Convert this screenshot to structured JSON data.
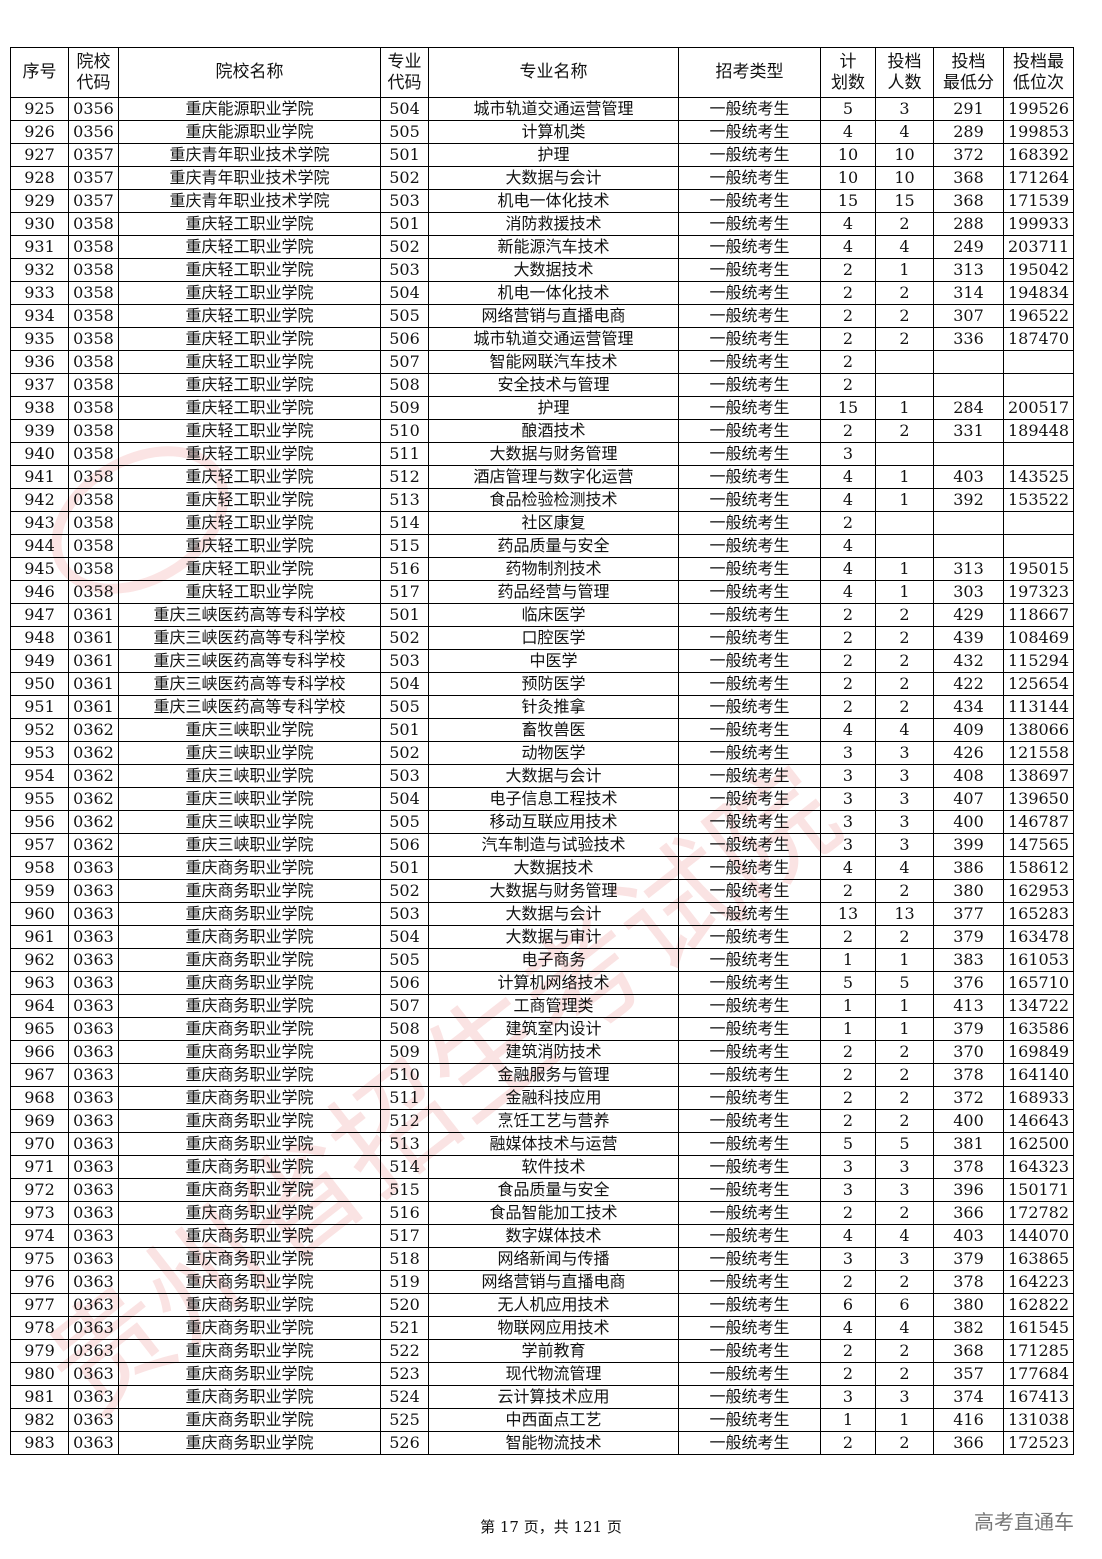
{
  "table": {
    "headers": [
      "序号",
      "院校\n代码",
      "院校名称",
      "专业\n代码",
      "专业名称",
      "招考类型",
      "计\n划数",
      "投档\n人数",
      "投档\n最低分",
      "投档最\n低位次"
    ],
    "rows": [
      [
        "925",
        "0356",
        "重庆能源职业学院",
        "504",
        "城市轨道交通运营管理",
        "一般统考生",
        "5",
        "3",
        "291",
        "199526"
      ],
      [
        "926",
        "0356",
        "重庆能源职业学院",
        "505",
        "计算机类",
        "一般统考生",
        "4",
        "4",
        "289",
        "199853"
      ],
      [
        "927",
        "0357",
        "重庆青年职业技术学院",
        "501",
        "护理",
        "一般统考生",
        "10",
        "10",
        "372",
        "168392"
      ],
      [
        "928",
        "0357",
        "重庆青年职业技术学院",
        "502",
        "大数据与会计",
        "一般统考生",
        "10",
        "10",
        "368",
        "171264"
      ],
      [
        "929",
        "0357",
        "重庆青年职业技术学院",
        "503",
        "机电一体化技术",
        "一般统考生",
        "15",
        "15",
        "368",
        "171539"
      ],
      [
        "930",
        "0358",
        "重庆轻工职业学院",
        "501",
        "消防救援技术",
        "一般统考生",
        "4",
        "2",
        "288",
        "199933"
      ],
      [
        "931",
        "0358",
        "重庆轻工职业学院",
        "502",
        "新能源汽车技术",
        "一般统考生",
        "4",
        "4",
        "249",
        "203711"
      ],
      [
        "932",
        "0358",
        "重庆轻工职业学院",
        "503",
        "大数据技术",
        "一般统考生",
        "2",
        "1",
        "313",
        "195042"
      ],
      [
        "933",
        "0358",
        "重庆轻工职业学院",
        "504",
        "机电一体化技术",
        "一般统考生",
        "2",
        "2",
        "314",
        "194834"
      ],
      [
        "934",
        "0358",
        "重庆轻工职业学院",
        "505",
        "网络营销与直播电商",
        "一般统考生",
        "2",
        "2",
        "307",
        "196522"
      ],
      [
        "935",
        "0358",
        "重庆轻工职业学院",
        "506",
        "城市轨道交通运营管理",
        "一般统考生",
        "2",
        "2",
        "336",
        "187470"
      ],
      [
        "936",
        "0358",
        "重庆轻工职业学院",
        "507",
        "智能网联汽车技术",
        "一般统考生",
        "2",
        "",
        "",
        ""
      ],
      [
        "937",
        "0358",
        "重庆轻工职业学院",
        "508",
        "安全技术与管理",
        "一般统考生",
        "2",
        "",
        "",
        ""
      ],
      [
        "938",
        "0358",
        "重庆轻工职业学院",
        "509",
        "护理",
        "一般统考生",
        "15",
        "1",
        "284",
        "200517"
      ],
      [
        "939",
        "0358",
        "重庆轻工职业学院",
        "510",
        "酿酒技术",
        "一般统考生",
        "2",
        "2",
        "331",
        "189448"
      ],
      [
        "940",
        "0358",
        "重庆轻工职业学院",
        "511",
        "大数据与财务管理",
        "一般统考生",
        "3",
        "",
        "",
        ""
      ],
      [
        "941",
        "0358",
        "重庆轻工职业学院",
        "512",
        "酒店管理与数字化运营",
        "一般统考生",
        "4",
        "1",
        "403",
        "143525"
      ],
      [
        "942",
        "0358",
        "重庆轻工职业学院",
        "513",
        "食品检验检测技术",
        "一般统考生",
        "4",
        "1",
        "392",
        "153522"
      ],
      [
        "943",
        "0358",
        "重庆轻工职业学院",
        "514",
        "社区康复",
        "一般统考生",
        "2",
        "",
        "",
        ""
      ],
      [
        "944",
        "0358",
        "重庆轻工职业学院",
        "515",
        "药品质量与安全",
        "一般统考生",
        "4",
        "",
        "",
        ""
      ],
      [
        "945",
        "0358",
        "重庆轻工职业学院",
        "516",
        "药物制剂技术",
        "一般统考生",
        "4",
        "1",
        "313",
        "195015"
      ],
      [
        "946",
        "0358",
        "重庆轻工职业学院",
        "517",
        "药品经营与管理",
        "一般统考生",
        "4",
        "1",
        "303",
        "197323"
      ],
      [
        "947",
        "0361",
        "重庆三峡医药高等专科学校",
        "501",
        "临床医学",
        "一般统考生",
        "2",
        "2",
        "429",
        "118667"
      ],
      [
        "948",
        "0361",
        "重庆三峡医药高等专科学校",
        "502",
        "口腔医学",
        "一般统考生",
        "2",
        "2",
        "439",
        "108469"
      ],
      [
        "949",
        "0361",
        "重庆三峡医药高等专科学校",
        "503",
        "中医学",
        "一般统考生",
        "2",
        "2",
        "432",
        "115294"
      ],
      [
        "950",
        "0361",
        "重庆三峡医药高等专科学校",
        "504",
        "预防医学",
        "一般统考生",
        "2",
        "2",
        "422",
        "125654"
      ],
      [
        "951",
        "0361",
        "重庆三峡医药高等专科学校",
        "505",
        "针灸推拿",
        "一般统考生",
        "2",
        "2",
        "434",
        "113144"
      ],
      [
        "952",
        "0362",
        "重庆三峡职业学院",
        "501",
        "畜牧兽医",
        "一般统考生",
        "4",
        "4",
        "409",
        "138066"
      ],
      [
        "953",
        "0362",
        "重庆三峡职业学院",
        "502",
        "动物医学",
        "一般统考生",
        "3",
        "3",
        "426",
        "121558"
      ],
      [
        "954",
        "0362",
        "重庆三峡职业学院",
        "503",
        "大数据与会计",
        "一般统考生",
        "3",
        "3",
        "408",
        "138697"
      ],
      [
        "955",
        "0362",
        "重庆三峡职业学院",
        "504",
        "电子信息工程技术",
        "一般统考生",
        "3",
        "3",
        "407",
        "139650"
      ],
      [
        "956",
        "0362",
        "重庆三峡职业学院",
        "505",
        "移动互联应用技术",
        "一般统考生",
        "3",
        "3",
        "400",
        "146787"
      ],
      [
        "957",
        "0362",
        "重庆三峡职业学院",
        "506",
        "汽车制造与试验技术",
        "一般统考生",
        "3",
        "3",
        "399",
        "147565"
      ],
      [
        "958",
        "0363",
        "重庆商务职业学院",
        "501",
        "大数据技术",
        "一般统考生",
        "4",
        "4",
        "386",
        "158612"
      ],
      [
        "959",
        "0363",
        "重庆商务职业学院",
        "502",
        "大数据与财务管理",
        "一般统考生",
        "2",
        "2",
        "380",
        "162953"
      ],
      [
        "960",
        "0363",
        "重庆商务职业学院",
        "503",
        "大数据与会计",
        "一般统考生",
        "13",
        "13",
        "377",
        "165283"
      ],
      [
        "961",
        "0363",
        "重庆商务职业学院",
        "504",
        "大数据与审计",
        "一般统考生",
        "2",
        "2",
        "379",
        "163478"
      ],
      [
        "962",
        "0363",
        "重庆商务职业学院",
        "505",
        "电子商务",
        "一般统考生",
        "1",
        "1",
        "383",
        "161053"
      ],
      [
        "963",
        "0363",
        "重庆商务职业学院",
        "506",
        "计算机网络技术",
        "一般统考生",
        "5",
        "5",
        "376",
        "165710"
      ],
      [
        "964",
        "0363",
        "重庆商务职业学院",
        "507",
        "工商管理类",
        "一般统考生",
        "1",
        "1",
        "413",
        "134722"
      ],
      [
        "965",
        "0363",
        "重庆商务职业学院",
        "508",
        "建筑室内设计",
        "一般统考生",
        "1",
        "1",
        "379",
        "163586"
      ],
      [
        "966",
        "0363",
        "重庆商务职业学院",
        "509",
        "建筑消防技术",
        "一般统考生",
        "2",
        "2",
        "370",
        "169849"
      ],
      [
        "967",
        "0363",
        "重庆商务职业学院",
        "510",
        "金融服务与管理",
        "一般统考生",
        "2",
        "2",
        "378",
        "164140"
      ],
      [
        "968",
        "0363",
        "重庆商务职业学院",
        "511",
        "金融科技应用",
        "一般统考生",
        "2",
        "2",
        "372",
        "168933"
      ],
      [
        "969",
        "0363",
        "重庆商务职业学院",
        "512",
        "烹饪工艺与营养",
        "一般统考生",
        "2",
        "2",
        "400",
        "146643"
      ],
      [
        "970",
        "0363",
        "重庆商务职业学院",
        "513",
        "融媒体技术与运营",
        "一般统考生",
        "5",
        "5",
        "381",
        "162500"
      ],
      [
        "971",
        "0363",
        "重庆商务职业学院",
        "514",
        "软件技术",
        "一般统考生",
        "3",
        "3",
        "378",
        "164323"
      ],
      [
        "972",
        "0363",
        "重庆商务职业学院",
        "515",
        "食品质量与安全",
        "一般统考生",
        "3",
        "3",
        "396",
        "150171"
      ],
      [
        "973",
        "0363",
        "重庆商务职业学院",
        "516",
        "食品智能加工技术",
        "一般统考生",
        "2",
        "2",
        "366",
        "172782"
      ],
      [
        "974",
        "0363",
        "重庆商务职业学院",
        "517",
        "数字媒体技术",
        "一般统考生",
        "4",
        "4",
        "403",
        "144070"
      ],
      [
        "975",
        "0363",
        "重庆商务职业学院",
        "518",
        "网络新闻与传播",
        "一般统考生",
        "3",
        "3",
        "379",
        "163865"
      ],
      [
        "976",
        "0363",
        "重庆商务职业学院",
        "519",
        "网络营销与直播电商",
        "一般统考生",
        "2",
        "2",
        "378",
        "164223"
      ],
      [
        "977",
        "0363",
        "重庆商务职业学院",
        "520",
        "无人机应用技术",
        "一般统考生",
        "6",
        "6",
        "380",
        "162822"
      ],
      [
        "978",
        "0363",
        "重庆商务职业学院",
        "521",
        "物联网应用技术",
        "一般统考生",
        "4",
        "4",
        "382",
        "161545"
      ],
      [
        "979",
        "0363",
        "重庆商务职业学院",
        "522",
        "学前教育",
        "一般统考生",
        "2",
        "2",
        "368",
        "171285"
      ],
      [
        "980",
        "0363",
        "重庆商务职业学院",
        "523",
        "现代物流管理",
        "一般统考生",
        "2",
        "2",
        "357",
        "177684"
      ],
      [
        "981",
        "0363",
        "重庆商务职业学院",
        "524",
        "云计算技术应用",
        "一般统考生",
        "3",
        "3",
        "374",
        "167413"
      ],
      [
        "982",
        "0363",
        "重庆商务职业学院",
        "525",
        "中西面点工艺",
        "一般统考生",
        "1",
        "1",
        "416",
        "131038"
      ],
      [
        "983",
        "0363",
        "重庆商务职业学院",
        "526",
        "智能物流技术",
        "一般统考生",
        "2",
        "2",
        "366",
        "172523"
      ]
    ]
  },
  "footer": {
    "page_info": "第 17 页，共 121 页",
    "brand": "高考直通车"
  },
  "watermark": {
    "text": "贵州省招生考试院",
    "color": "#e03030"
  }
}
